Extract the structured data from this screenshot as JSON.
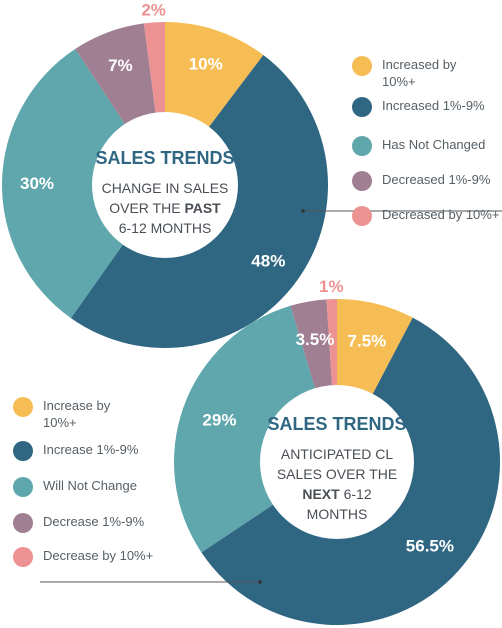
{
  "chart_data": [
    {
      "type": "pie",
      "title": "SALES TRENDS",
      "subtitle_lines": [
        "CHANGE IN SALES",
        "OVER THE ",
        "PAST",
        "6-12 MONTHS"
      ],
      "categories": [
        "Increased by 10%+",
        "Increased 1%-9%",
        "Has Not Changed",
        "Decreased 1%-9%",
        "Decreased by 10%+"
      ],
      "values": [
        10,
        48,
        30,
        7,
        2
      ],
      "value_labels": [
        "10%",
        "48%",
        "30%",
        "7%",
        "2%"
      ],
      "legend_lines": [
        [
          "Increased by",
          "10%+"
        ],
        [
          "Increased 1%-9%"
        ],
        [
          "Has Not Changed"
        ],
        [
          "Decreased 1%-9%"
        ],
        [
          "Decreased by 10%+"
        ]
      ],
      "colors": [
        "#f7bd55",
        "#2f6783",
        "#5fa7ac",
        "#a17f93",
        "#ec9293"
      ],
      "legend_position": "right"
    },
    {
      "type": "pie",
      "title": "SALES TRENDS",
      "subtitle_lines": [
        "ANTICIPATED CL",
        "SALES OVER THE",
        "NEXT",
        " 6-12",
        "MONTHS"
      ],
      "categories": [
        "Increase by 10%+",
        "Increase 1%-9%",
        "Will Not Change",
        "Decrease 1%-9%",
        "Decrease by 10%+"
      ],
      "values": [
        7.5,
        56.5,
        29,
        3.5,
        1
      ],
      "value_labels": [
        "7.5%",
        "56.5%",
        "29%",
        "3.5%",
        "1%"
      ],
      "legend_lines": [
        [
          "Increase by",
          "10%+"
        ],
        [
          "Increase 1%-9%"
        ],
        [
          "Will Not Change"
        ],
        [
          "Decrease 1%-9%"
        ],
        [
          "Decrease by 10%+"
        ]
      ],
      "colors": [
        "#f7bd55",
        "#2f6783",
        "#5fa7ac",
        "#a17f93",
        "#ec9293"
      ],
      "legend_position": "left"
    }
  ]
}
